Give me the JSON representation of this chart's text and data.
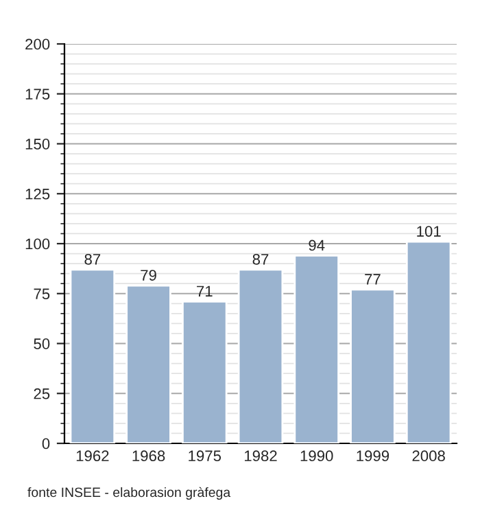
{
  "chart_data": {
    "type": "bar",
    "categories": [
      "1962",
      "1968",
      "1975",
      "1982",
      "1990",
      "1999",
      "2008"
    ],
    "values": [
      87,
      79,
      71,
      87,
      94,
      77,
      101
    ],
    "color": "#9ab3cf",
    "data_labels": true,
    "ylim": [
      0,
      200
    ],
    "yticks": [
      0,
      25,
      50,
      75,
      100,
      125,
      150,
      175,
      200
    ],
    "grid": "y",
    "annotations": [
      "fonte INSEE - elaborasion gràfega"
    ]
  }
}
